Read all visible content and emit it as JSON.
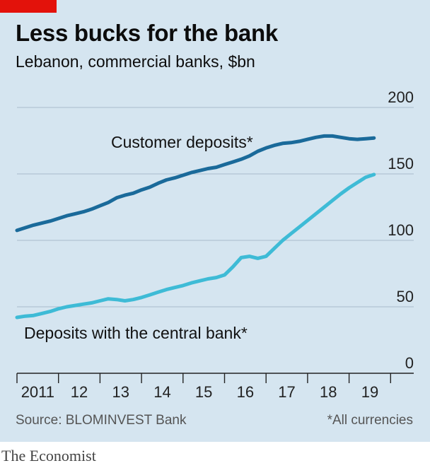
{
  "header": {
    "title": "Less bucks for the bank",
    "subtitle": "Lebanon, commercial banks, $bn"
  },
  "footer": {
    "source": "Source: BLOMINVEST Bank",
    "footnote": "*All currencies",
    "brand": "The Economist"
  },
  "colors": {
    "background": "#d5e5f0",
    "accent_red": "#e3120b",
    "customer_deposits": "#1a6a9a",
    "central_bank_deposits": "#3ebbd6",
    "gridline": "#a9bccc"
  },
  "chart_data": {
    "type": "line",
    "title": "Less bucks for the bank",
    "subtitle": "Lebanon, commercial banks, $bn",
    "xlim": [
      2011,
      2020
    ],
    "ylim": [
      0,
      200
    ],
    "y_ticks": [
      0,
      50,
      100,
      150,
      200
    ],
    "y_tick_labels": [
      "0",
      "50",
      "100",
      "150",
      "200"
    ],
    "y_axis_side": "right",
    "x_ticks": [
      2011,
      2012,
      2013,
      2014,
      2015,
      2016,
      2017,
      2018,
      2019
    ],
    "x_tick_labels": [
      "2011",
      "12",
      "13",
      "14",
      "15",
      "16",
      "17",
      "18",
      "19"
    ],
    "grid": true,
    "series": [
      {
        "name": "Customer deposits*",
        "points": [
          [
            2011.0,
            107.5
          ],
          [
            2011.2,
            109.5
          ],
          [
            2011.4,
            111.5
          ],
          [
            2011.6,
            113.0
          ],
          [
            2011.8,
            114.5
          ],
          [
            2012.0,
            116.5
          ],
          [
            2012.2,
            118.5
          ],
          [
            2012.4,
            120.0
          ],
          [
            2012.6,
            121.5
          ],
          [
            2012.8,
            123.5
          ],
          [
            2013.0,
            126.0
          ],
          [
            2013.2,
            128.5
          ],
          [
            2013.4,
            132.0
          ],
          [
            2013.6,
            134.0
          ],
          [
            2013.8,
            135.5
          ],
          [
            2014.0,
            138.0
          ],
          [
            2014.2,
            140.0
          ],
          [
            2014.4,
            143.0
          ],
          [
            2014.6,
            145.5
          ],
          [
            2014.8,
            147.0
          ],
          [
            2015.0,
            149.0
          ],
          [
            2015.2,
            151.0
          ],
          [
            2015.4,
            152.5
          ],
          [
            2015.6,
            154.0
          ],
          [
            2015.8,
            155.0
          ],
          [
            2016.0,
            157.0
          ],
          [
            2016.2,
            159.0
          ],
          [
            2016.4,
            161.0
          ],
          [
            2016.6,
            163.5
          ],
          [
            2016.8,
            167.0
          ],
          [
            2017.0,
            169.5
          ],
          [
            2017.2,
            171.5
          ],
          [
            2017.4,
            173.0
          ],
          [
            2017.6,
            173.5
          ],
          [
            2017.8,
            174.5
          ],
          [
            2018.0,
            176.0
          ],
          [
            2018.2,
            177.5
          ],
          [
            2018.4,
            178.5
          ],
          [
            2018.6,
            178.5
          ],
          [
            2018.8,
            177.5
          ],
          [
            2019.0,
            176.5
          ],
          [
            2019.2,
            176.0
          ],
          [
            2019.4,
            176.5
          ],
          [
            2019.6,
            177.0
          ]
        ]
      },
      {
        "name": "Deposits with the central bank*",
        "points": [
          [
            2011.0,
            42.0
          ],
          [
            2011.2,
            43.0
          ],
          [
            2011.4,
            43.5
          ],
          [
            2011.6,
            45.0
          ],
          [
            2011.8,
            46.5
          ],
          [
            2012.0,
            48.5
          ],
          [
            2012.2,
            50.0
          ],
          [
            2012.4,
            51.0
          ],
          [
            2012.6,
            52.0
          ],
          [
            2012.8,
            53.0
          ],
          [
            2013.0,
            54.5
          ],
          [
            2013.2,
            56.0
          ],
          [
            2013.4,
            55.5
          ],
          [
            2013.6,
            54.5
          ],
          [
            2013.8,
            55.5
          ],
          [
            2014.0,
            57.0
          ],
          [
            2014.2,
            59.0
          ],
          [
            2014.4,
            61.0
          ],
          [
            2014.6,
            63.0
          ],
          [
            2014.8,
            64.5
          ],
          [
            2015.0,
            66.0
          ],
          [
            2015.2,
            68.0
          ],
          [
            2015.4,
            69.5
          ],
          [
            2015.6,
            71.0
          ],
          [
            2015.8,
            72.0
          ],
          [
            2016.0,
            74.0
          ],
          [
            2016.2,
            80.0
          ],
          [
            2016.4,
            87.0
          ],
          [
            2016.6,
            88.0
          ],
          [
            2016.8,
            86.5
          ],
          [
            2017.0,
            88.0
          ],
          [
            2017.2,
            94.0
          ],
          [
            2017.4,
            100.0
          ],
          [
            2017.6,
            105.0
          ],
          [
            2017.8,
            110.0
          ],
          [
            2018.0,
            115.0
          ],
          [
            2018.2,
            120.0
          ],
          [
            2018.4,
            125.0
          ],
          [
            2018.6,
            130.0
          ],
          [
            2018.8,
            135.0
          ],
          [
            2019.0,
            139.5
          ],
          [
            2019.2,
            143.5
          ],
          [
            2019.4,
            147.5
          ],
          [
            2019.6,
            149.5
          ]
        ]
      }
    ]
  }
}
